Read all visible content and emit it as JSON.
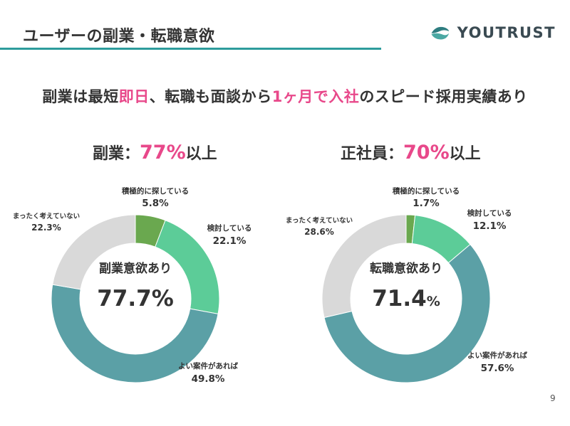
{
  "header": {
    "title": "ユーザーの副業・転職意欲",
    "rule_color": "#2d9c9c"
  },
  "logo": {
    "text": "YOUTRUST",
    "icon": "youtrust-logo-icon",
    "colors": [
      "#2e7d80",
      "#4aa8a3"
    ]
  },
  "headline": {
    "parts": [
      {
        "text": "副業は最短",
        "highlight": false
      },
      {
        "text": "即日",
        "highlight": true
      },
      {
        "text": "、転職も面談から",
        "highlight": false
      },
      {
        "text": "1ヶ月で入社",
        "highlight": true
      },
      {
        "text": "のスピード採用実績あり",
        "highlight": false
      }
    ],
    "highlight_color": "#e8488a"
  },
  "left_summary": {
    "prefix": "副業：",
    "percent": "77%",
    "suffix": "以上"
  },
  "right_summary": {
    "prefix": "正社員：",
    "percent": "70%",
    "suffix": "以上"
  },
  "colors": {
    "active": "#6aa84f",
    "considering": "#5ccc98",
    "if_good": "#5ba0a6",
    "none": "#d9d9d9",
    "highlight": "#e8488a"
  },
  "chart_data": [
    {
      "type": "pie",
      "slices": [
        {
          "label": "積極的に探している",
          "value": 5.8,
          "display": "5.8%"
        },
        {
          "label": "検討している",
          "value": 22.1,
          "display": "22.1%"
        },
        {
          "label": "よい案件があれば",
          "value": 49.8,
          "display": "49.8%"
        },
        {
          "label": "まったく考えていない",
          "value": 22.3,
          "display": "22.3%"
        }
      ],
      "center_title": "副業意欲あり",
      "center_value": "77.7%",
      "center_unit": ""
    },
    {
      "type": "pie",
      "slices": [
        {
          "label": "積極的に探している",
          "value": 1.7,
          "display": "1.7%"
        },
        {
          "label": "検討している",
          "value": 12.1,
          "display": "12.1%"
        },
        {
          "label": "よい案件があれば",
          "value": 57.6,
          "display": "57.6%"
        },
        {
          "label": "まったく考えていない",
          "value": 28.6,
          "display": "28.6%"
        }
      ],
      "center_title": "転職意欲あり",
      "center_value": "71.4",
      "center_unit": "%"
    }
  ],
  "page_number": "9"
}
